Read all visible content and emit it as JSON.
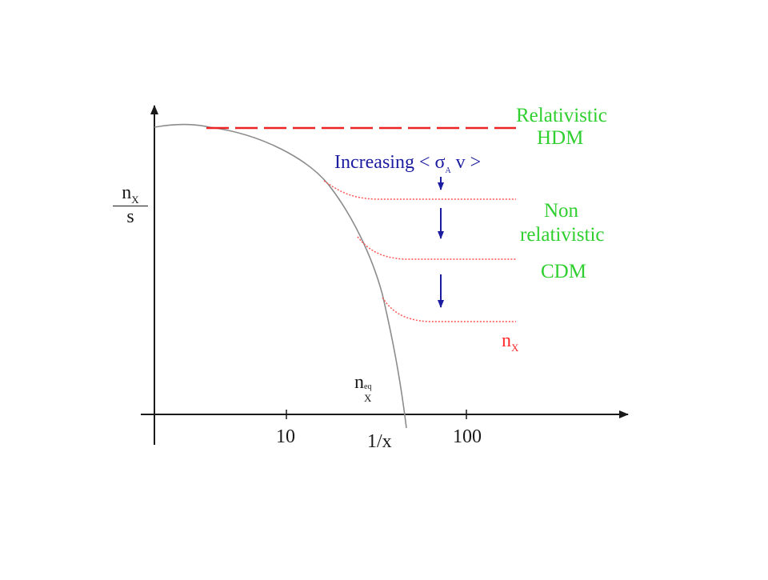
{
  "y_axis_label": {
    "numerator": "n",
    "numerator_sub": "X",
    "denominator": "s"
  },
  "x_axis_label": "1/x",
  "x_ticks": [
    "10",
    "100"
  ],
  "labels": {
    "relativistic": "Relativistic",
    "hdm": "HDM",
    "increasing_prefix": "Increasing",
    "increasing_expr_open": "< σ",
    "increasing_expr_sub": "A",
    "increasing_expr_close": " v >",
    "non": "Non",
    "non_relativistic": "relativistic",
    "cdm": "CDM",
    "nx_main": "n",
    "nx_main_sub": "X",
    "nx_eq_main": "n",
    "nx_eq_sub": "X",
    "nx_eq_sup": "eq"
  },
  "colors": {
    "axis": "#1a1a1a",
    "equilibrium_curve": "#8c8c8c",
    "hdm_line": "#ee2222",
    "freezeout": "#ff5555",
    "arrows": "#1c1ca0",
    "regime_labels": "#2fcf2f",
    "abundance_label": "#ff2a2a",
    "annotation": "#1c1ca0"
  }
}
